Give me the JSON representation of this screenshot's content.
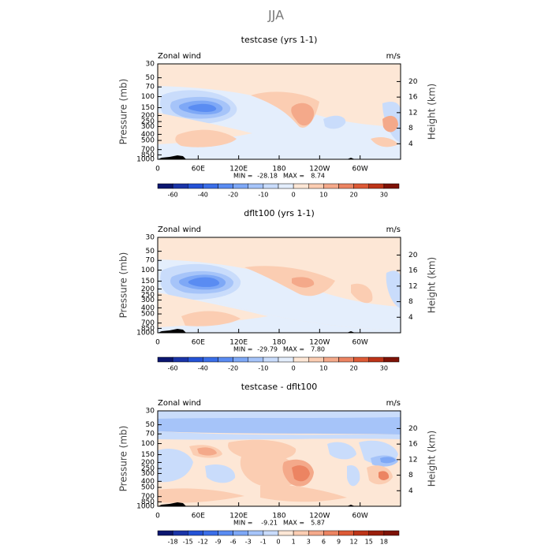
{
  "chart_data": [
    {
      "type": "contour",
      "suptitle": "JJA",
      "title": "testcase (yrs 1-1)",
      "left_label": "Zonal wind",
      "right_label": "m/s",
      "ylabel": "Pressure (mb)",
      "y2label": "Height (km)",
      "log_y": true,
      "xlim": [
        0,
        360
      ],
      "xticks": [
        0,
        {
          "value": 60,
          "label": "60E"
        },
        {
          "value": 120,
          "label": "120E"
        },
        180,
        {
          "value": 240,
          "label": "120W"
        },
        {
          "value": 300,
          "label": "60W"
        }
      ],
      "ylim": [
        1000,
        30
      ],
      "yticks": [
        30,
        50,
        70,
        100,
        150,
        200,
        250,
        300,
        400,
        500,
        700,
        850,
        1000
      ],
      "y2ticks": [
        4,
        8,
        12,
        16,
        20
      ],
      "min_label": "MIN =",
      "min": -28.18,
      "max_label": "MAX =",
      "max": 8.74,
      "colorbar": {
        "levels": [
          -60,
          -40,
          -20,
          -10,
          0,
          10,
          20,
          30
        ],
        "colors": [
          "#0b1670",
          "#1a34a8",
          "#2452d6",
          "#3a6ee8",
          "#5a8cf2",
          "#7ea8f6",
          "#a6c4f9",
          "#c9dcfb",
          "#e4eefc",
          "#fde7d6",
          "#fbcdb2",
          "#f4a98a",
          "#ec8462",
          "#dd5a36",
          "#bd3418",
          "#7e1206"
        ]
      }
    },
    {
      "type": "contour",
      "title": "dflt100 (yrs 1-1)",
      "left_label": "Zonal wind",
      "right_label": "m/s",
      "ylabel": "Pressure (mb)",
      "y2label": "Height (km)",
      "log_y": true,
      "xlim": [
        0,
        360
      ],
      "xticks": [
        0,
        {
          "value": 60,
          "label": "60E"
        },
        {
          "value": 120,
          "label": "120E"
        },
        180,
        {
          "value": 240,
          "label": "120W"
        },
        {
          "value": 300,
          "label": "60W"
        }
      ],
      "ylim": [
        1000,
        30
      ],
      "yticks": [
        30,
        50,
        70,
        100,
        150,
        200,
        250,
        300,
        400,
        500,
        700,
        850,
        1000
      ],
      "y2ticks": [
        4,
        8,
        12,
        16,
        20
      ],
      "min_label": "MIN =",
      "min": -29.79,
      "max_label": "MAX =",
      "max": {
        "value": 7.8,
        "label": "7.80"
      },
      "colorbar": {
        "levels": [
          -60,
          -40,
          -20,
          -10,
          0,
          10,
          20,
          30
        ],
        "colors": [
          "#0b1670",
          "#1a34a8",
          "#2452d6",
          "#3a6ee8",
          "#5a8cf2",
          "#7ea8f6",
          "#a6c4f9",
          "#c9dcfb",
          "#e4eefc",
          "#fde7d6",
          "#fbcdb2",
          "#f4a98a",
          "#ec8462",
          "#dd5a36",
          "#bd3418",
          "#7e1206"
        ]
      }
    },
    {
      "type": "contour",
      "title": "testcase - dflt100",
      "left_label": "Zonal wind",
      "right_label": "m/s",
      "ylabel": "Pressure (mb)",
      "y2label": "Height (km)",
      "log_y": true,
      "xlim": [
        0,
        360
      ],
      "xticks": [
        0,
        {
          "value": 60,
          "label": "60E"
        },
        {
          "value": 120,
          "label": "120E"
        },
        180,
        {
          "value": 240,
          "label": "120W"
        },
        {
          "value": 300,
          "label": "60W"
        }
      ],
      "ylim": [
        1000,
        30
      ],
      "yticks": [
        30,
        50,
        70,
        100,
        150,
        200,
        250,
        300,
        400,
        500,
        700,
        850,
        1000
      ],
      "y2ticks": [
        4,
        8,
        12,
        16,
        20
      ],
      "min_label": "MIN =",
      "min": -9.21,
      "max_label": "MAX =",
      "max": 5.87,
      "colorbar": {
        "levels": [
          -18,
          -15,
          -12,
          -9,
          -6,
          -3,
          -1,
          0,
          1,
          3,
          6,
          9,
          12,
          15,
          18
        ],
        "colors": [
          "#0b1670",
          "#1a34a8",
          "#2452d6",
          "#3a6ee8",
          "#5a8cf2",
          "#7ea8f6",
          "#a6c4f9",
          "#c9dcfb",
          "#fde7d6",
          "#fbcdb2",
          "#f4a98a",
          "#ec8462",
          "#dd5a36",
          "#bd3418",
          "#9a1f0c",
          "#7e1206"
        ]
      }
    }
  ]
}
